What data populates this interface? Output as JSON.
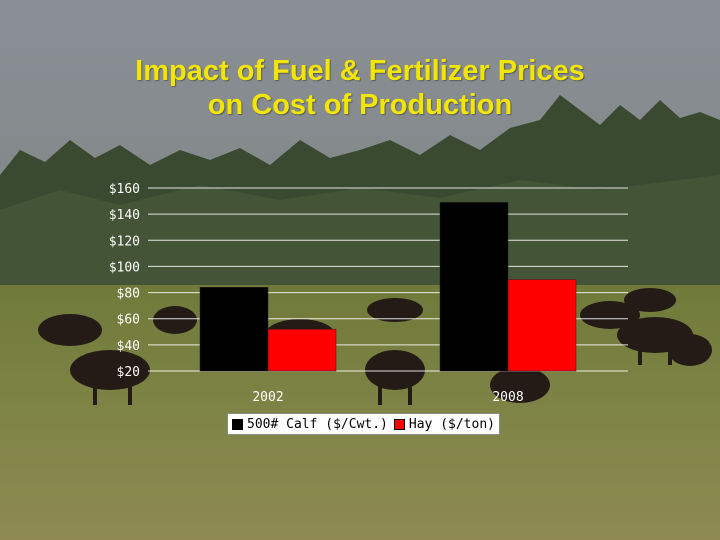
{
  "slide": {
    "title_line1": "Impact of Fuel & Fertilizer Prices",
    "title_line2": "on Cost of Production"
  },
  "colors": {
    "title": "#f2e600",
    "series_calf": "#000000",
    "series_hay": "#ff0000",
    "axis_text": "#ffffff",
    "gridline": "#ffffff"
  },
  "chart_data": {
    "type": "bar",
    "categories": [
      "2002",
      "2008"
    ],
    "series": [
      {
        "name": "500# Calf ($/Cwt.)",
        "values": [
          84,
          149
        ],
        "color": "#000000"
      },
      {
        "name": "Hay ($/ton)",
        "values": [
          52,
          90
        ],
        "color": "#ff0000"
      }
    ],
    "y_ticks": [
      "$160",
      "$140",
      "$120",
      "$100",
      "$80",
      "$60",
      "$40",
      "$20"
    ],
    "y_tick_values": [
      160,
      140,
      120,
      100,
      80,
      60,
      40,
      20
    ],
    "ylim": [
      20,
      160
    ],
    "grid": true,
    "legend": "bottom",
    "title": "",
    "xlabel": "",
    "ylabel": ""
  }
}
